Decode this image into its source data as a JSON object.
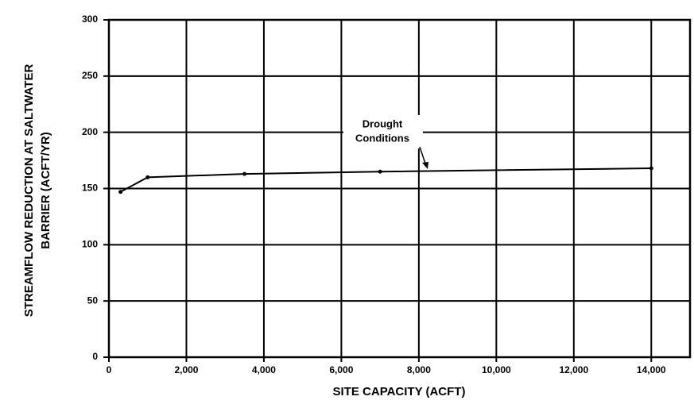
{
  "chart_data": {
    "type": "line",
    "x_label": "SITE CAPACITY (ACFT)",
    "y_label": [
      "STREAMFLOW REDUCTION AT SALTWATER",
      "BARRIER (ACFT/YR)"
    ],
    "annotation": [
      "Drought",
      "Conditions"
    ],
    "x": [
      300,
      1000,
      3500,
      7000,
      14000
    ],
    "series": [
      {
        "name": "Drought Conditions",
        "color": "#000000",
        "values": [
          147,
          160,
          163,
          165,
          168
        ]
      }
    ],
    "xlim": [
      0,
      15000
    ],
    "xticks": [
      0,
      {
        "value": 2000,
        "label": "2,000"
      },
      {
        "value": 4000,
        "label": "4,000"
      },
      {
        "value": 6000,
        "label": "6,000"
      },
      {
        "value": 8000,
        "label": "8,000"
      },
      {
        "value": 10000,
        "label": "10,000"
      },
      {
        "value": 12000,
        "label": "12,000"
      },
      {
        "value": 14000,
        "label": "14,000"
      }
    ],
    "ylim": [
      0,
      300
    ],
    "yticks": [
      0,
      50,
      100,
      150,
      200,
      250,
      300
    ],
    "grid": true
  }
}
